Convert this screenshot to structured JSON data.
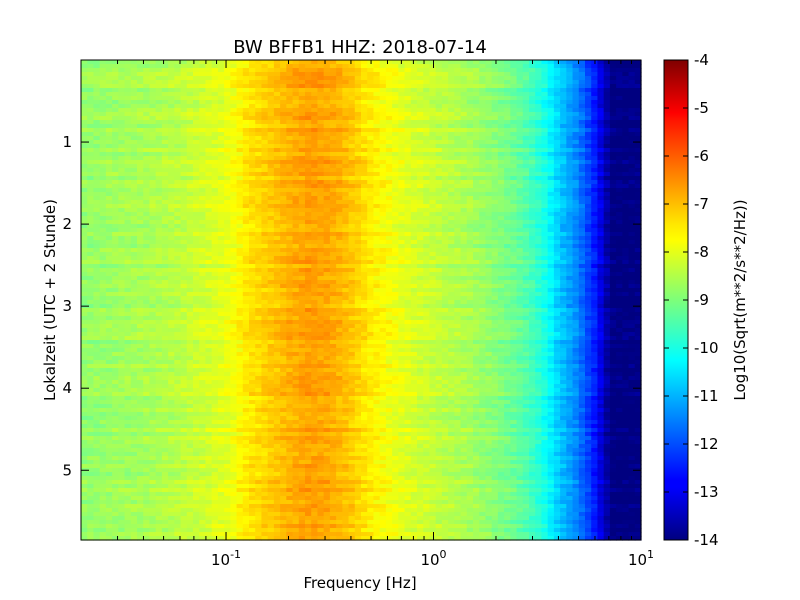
{
  "chart_data": {
    "type": "heatmap",
    "title": "BW BFFB1 HHZ: 2018-07-14",
    "xlabel": "Frequency [Hz]",
    "ylabel": "Lokalzeit (UTC + 2 Stunde)",
    "x_scale": "log",
    "xlim": [
      0.02,
      10
    ],
    "ylim": [
      5.85,
      0
    ],
    "x_ticks": [
      {
        "value": 0.1,
        "base": "10",
        "exp": "-1"
      },
      {
        "value": 1,
        "base": "10",
        "exp": "0"
      },
      {
        "value": 10,
        "base": "10",
        "exp": "1"
      }
    ],
    "y_ticks": [
      {
        "value": 1,
        "label": "1"
      },
      {
        "value": 2,
        "label": "2"
      },
      {
        "value": 3,
        "label": "3"
      },
      {
        "value": 4,
        "label": "4"
      },
      {
        "value": 5,
        "label": "5"
      }
    ],
    "colorbar": {
      "label": "Log10(Sqrt(m**2/s**2/Hz))",
      "colormap": "jet",
      "range": [
        -14,
        -4
      ],
      "ticks": [
        "-4",
        "-5",
        "-6",
        "-7",
        "-8",
        "-9",
        "-10",
        "-11",
        "-12",
        "-13",
        "-14"
      ]
    },
    "frequency_profile": {
      "frequencies": [
        0.02,
        0.04,
        0.06,
        0.1,
        0.13,
        0.2,
        0.25,
        0.32,
        0.4,
        0.5,
        0.7,
        1.0,
        1.5,
        2.0,
        2.5,
        3.0,
        3.5,
        4.0,
        5.0,
        6.0,
        6.8,
        7.0,
        10.0
      ],
      "values": [
        -8.8,
        -8.6,
        -8.4,
        -8.0,
        -7.5,
        -7.0,
        -6.8,
        -6.9,
        -7.2,
        -7.6,
        -8.0,
        -8.3,
        -8.6,
        -8.9,
        -9.2,
        -9.6,
        -10.1,
        -10.7,
        -11.5,
        -12.5,
        -13.5,
        -14.0,
        -14.0
      ]
    },
    "grid": false,
    "legend": "none"
  }
}
